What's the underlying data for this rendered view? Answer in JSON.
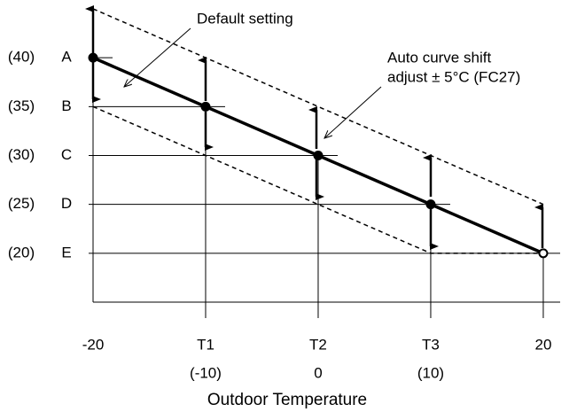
{
  "chart_data": {
    "type": "line",
    "xlabel": "Outdoor Temperature",
    "annotations": [
      "Default setting",
      "Auto curve shift",
      "adjust ± 5°C (FC27)"
    ],
    "xlim": [
      -20,
      21.5
    ],
    "ylim": [
      15,
      45
    ],
    "xticks": [
      {
        "value": -20,
        "label": "-20"
      },
      {
        "value": -10,
        "label": "T1",
        "note": "(-10)"
      },
      {
        "value": 0,
        "label": "T2",
        "note": "0"
      },
      {
        "value": 10,
        "label": "T3",
        "note": "(10)"
      },
      {
        "value": 20,
        "label": "20"
      }
    ],
    "yticks": [
      {
        "value": 40,
        "label": "A",
        "note": "(40)"
      },
      {
        "value": 35,
        "label": "B",
        "note": "(35)"
      },
      {
        "value": 30,
        "label": "C",
        "note": "(30)"
      },
      {
        "value": 25,
        "label": "D",
        "note": "(25)"
      },
      {
        "value": 20,
        "label": "E",
        "note": "(20)"
      }
    ],
    "series": [
      {
        "name": "Default setting",
        "color": "#000000",
        "style": "solid",
        "x": [
          -20,
          -10,
          0,
          10,
          20
        ],
        "values": [
          40,
          35,
          30,
          25,
          20
        ]
      },
      {
        "name": "Upper shift",
        "color": "#000000",
        "style": "dashed",
        "x": [
          -20,
          20
        ],
        "values": [
          45,
          25
        ]
      },
      {
        "name": "Lower shift",
        "color": "#000000",
        "style": "dashed",
        "x": [
          -20,
          10,
          20
        ],
        "values": [
          35,
          20,
          20
        ]
      }
    ]
  }
}
